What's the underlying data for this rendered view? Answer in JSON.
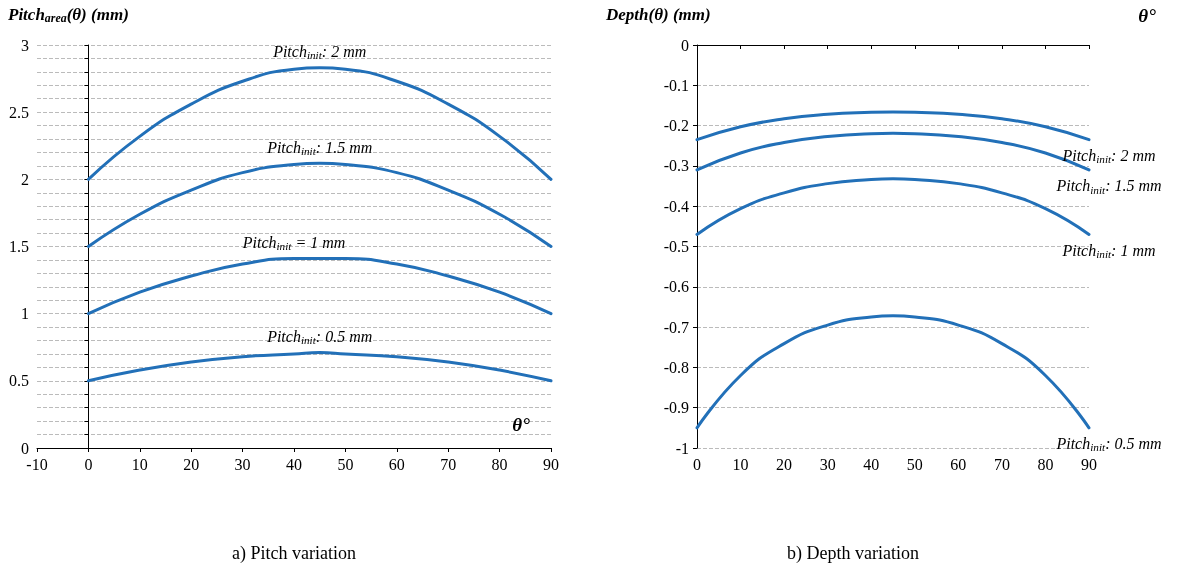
{
  "chart_data": [
    {
      "type": "line",
      "title": "a) Pitch variation",
      "xlabel": "θ°",
      "ylabel": "Pitch$_{area}$(θ) (mm)",
      "marker": "none",
      "line_style": "solid",
      "grid": "y",
      "xlim": [
        -10,
        90
      ],
      "xticks": [
        -10,
        0,
        10,
        20,
        30,
        40,
        50,
        60,
        70,
        80,
        90
      ],
      "ylim": [
        0,
        3
      ],
      "yticks": [
        0,
        {
          "value": 0.1,
          "label": null
        },
        {
          "value": 0.2,
          "label": null
        },
        {
          "value": 0.3,
          "label": null
        },
        {
          "value": 0.4,
          "label": null
        },
        0.5,
        {
          "value": 0.6,
          "label": null
        },
        {
          "value": 0.7,
          "label": null
        },
        {
          "value": 0.8,
          "label": null
        },
        {
          "value": 0.9,
          "label": null
        },
        1,
        {
          "value": 1.1,
          "label": null
        },
        {
          "value": 1.2,
          "label": null
        },
        {
          "value": 1.3,
          "label": null
        },
        {
          "value": 1.4,
          "label": null
        },
        1.5,
        {
          "value": 1.6,
          "label": null
        },
        {
          "value": 1.7,
          "label": null
        },
        {
          "value": 1.8,
          "label": null
        },
        {
          "value": 1.9,
          "label": null
        },
        2,
        {
          "value": 2.1,
          "label": null
        },
        {
          "value": 2.2,
          "label": null
        },
        {
          "value": 2.3,
          "label": null
        },
        {
          "value": 2.4,
          "label": null
        },
        2.5,
        {
          "value": 2.6,
          "label": null
        },
        {
          "value": 2.7,
          "label": null
        },
        {
          "value": 2.8,
          "label": null
        },
        {
          "value": 2.9,
          "label": null
        },
        3
      ],
      "x": [
        0,
        10,
        20,
        30,
        40,
        45,
        50,
        60,
        70,
        80,
        90
      ],
      "series": [
        {
          "color": "#2270b8",
          "values": [
            2,
            2.32,
            2.56,
            2.73,
            2.82,
            2.83,
            2.82,
            2.73,
            2.56,
            2.32,
            2
          ]
        },
        {
          "color": "#2270b8",
          "values": [
            1.5,
            1.74,
            1.92,
            2.05,
            2.11,
            2.12,
            2.11,
            2.05,
            1.92,
            1.74,
            1.5
          ]
        },
        {
          "color": "#2270b8",
          "values": [
            1,
            1.16,
            1.28,
            1.37,
            1.41,
            1.41,
            1.41,
            1.37,
            1.28,
            1.16,
            1
          ]
        },
        {
          "color": "#2270b8",
          "values": [
            0.5,
            0.58,
            0.64,
            0.68,
            0.7,
            0.71,
            0.7,
            0.68,
            0.64,
            0.58,
            0.5
          ]
        }
      ],
      "annotations": [
        "Pitch$_{init}$: 2 mm",
        "Pitch$_{init}$: 1.5 mm",
        "Pitch$_{init}$ = 1 mm",
        "Pitch$_{init}$: 0.5 mm"
      ]
    },
    {
      "type": "line",
      "title": "b) Depth variation",
      "xlabel": "θ°",
      "ylabel": "Depth(θ) (mm)",
      "marker": "none",
      "line_style": "solid",
      "grid": "y",
      "xlim": [
        0,
        90
      ],
      "xticks": [
        0,
        10,
        20,
        30,
        40,
        50,
        60,
        70,
        80,
        90
      ],
      "ylim": [
        -1,
        0
      ],
      "yticks": [
        -1,
        -0.9,
        -0.8,
        -0.7,
        -0.6,
        -0.5,
        -0.4,
        -0.3,
        -0.2,
        -0.1,
        0
      ],
      "x": [
        0,
        10,
        20,
        30,
        40,
        45,
        50,
        60,
        70,
        80,
        90
      ],
      "series": [
        {
          "color": "#2270b8",
          "values": [
            -0.235,
            -0.203,
            -0.183,
            -0.172,
            -0.167,
            -0.166,
            -0.167,
            -0.172,
            -0.183,
            -0.203,
            -0.235
          ]
        },
        {
          "color": "#2270b8",
          "values": [
            -0.31,
            -0.268,
            -0.242,
            -0.227,
            -0.22,
            -0.219,
            -0.22,
            -0.227,
            -0.242,
            -0.268,
            -0.31
          ]
        },
        {
          "color": "#2270b8",
          "values": [
            -0.47,
            -0.406,
            -0.367,
            -0.344,
            -0.334,
            -0.332,
            -0.334,
            -0.344,
            -0.367,
            -0.406,
            -0.47
          ]
        },
        {
          "color": "#2270b8",
          "values": [
            -0.95,
            -0.82,
            -0.741,
            -0.695,
            -0.675,
            -0.672,
            -0.675,
            -0.695,
            -0.741,
            -0.82,
            -0.95
          ]
        }
      ],
      "annotations": [
        "Pitch$_{init}$: 2 mm",
        "Pitch$_{init}$: 1.5 mm",
        "Pitch$_{init}$: 1 mm",
        "Pitch$_{init}$: 0.5 mm"
      ]
    }
  ]
}
